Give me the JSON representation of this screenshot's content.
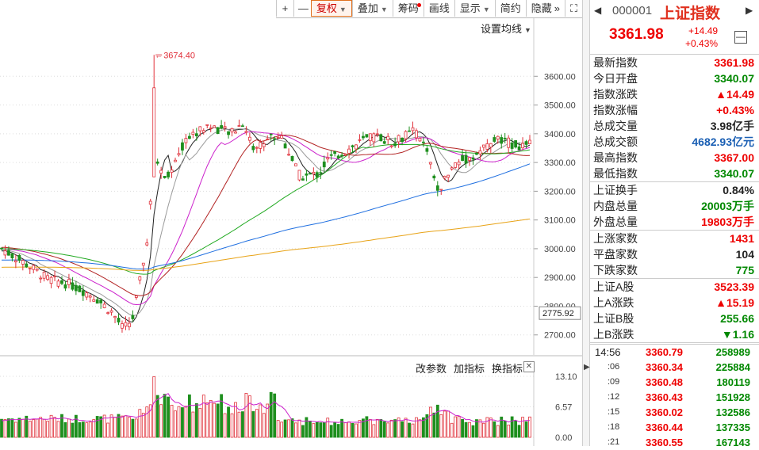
{
  "toolbar": {
    "buttons": [
      {
        "label": "+",
        "caret": false,
        "sq": true
      },
      {
        "label": "—",
        "caret": false,
        "sq": true
      },
      {
        "label": "复权",
        "caret": true,
        "active": true
      },
      {
        "label": "叠加",
        "caret": true
      },
      {
        "label": "筹码",
        "caret": false,
        "dot": true
      },
      {
        "label": "画线",
        "caret": false
      },
      {
        "label": "显示",
        "caret": true
      },
      {
        "label": "简约",
        "caret": false
      },
      {
        "label": "隐藏",
        "caret": false,
        "suffix": "»"
      },
      {
        "label": "⛶",
        "caret": false,
        "sq": true
      }
    ]
  },
  "ma_setting": "设置均线",
  "price_axis": {
    "ticks": [
      "3600.00",
      "3500.00",
      "3400.00",
      "3300.00",
      "3200.00",
      "3100.00",
      "3000.00",
      "2900.00",
      "2800.00",
      "2700.00"
    ],
    "tick_values": [
      3600,
      3500,
      3400,
      3300,
      3200,
      3100,
      3000,
      2900,
      2800,
      2700
    ],
    "current_label": "2775.92",
    "current_value": 2775.92
  },
  "annotation": {
    "high_label": "3674.40",
    "high_value": 3674.4
  },
  "volume_toolbar": {
    "items": [
      "改参数",
      "加指标",
      "换指标"
    ],
    "close": "✕"
  },
  "volume_axis": {
    "ticks": [
      "13.10",
      "6.57",
      "0.00"
    ]
  },
  "chart_data": {
    "type": "candlestick",
    "colors": {
      "up": "#e0303a",
      "down": "#1e8f1e",
      "ma5": "#222222",
      "ma10": "#9a9a9a",
      "ma20": "#cc22cc",
      "ma30": "#b22222",
      "ma60": "#22aa22",
      "ma120": "#1f6fe0",
      "ma250": "#e8a317"
    },
    "ylim": [
      2680,
      3700
    ],
    "vol_ylim": [
      0,
      13.1
    ]
  },
  "quote": {
    "code": "000001",
    "name": "上证指数",
    "price": "3361.98",
    "change": "+14.49",
    "change_pct": "+0.43%",
    "prev_icon": "◀",
    "next_icon": "▶",
    "collapse": "—",
    "groups": [
      [
        {
          "label": "最新指数",
          "value": "3361.98",
          "color": "red"
        },
        {
          "label": "今日开盘",
          "value": "3340.07",
          "color": "green"
        },
        {
          "label": "指数涨跌",
          "value": "▲14.49",
          "color": "red"
        },
        {
          "label": "指数涨幅",
          "value": "+0.43%",
          "color": "red"
        },
        {
          "label": "总成交量",
          "value": "3.98亿手",
          "color": "blk"
        },
        {
          "label": "总成交额",
          "value": "4682.93亿元",
          "color": "blue"
        },
        {
          "label": "最高指数",
          "value": "3367.00",
          "color": "red"
        },
        {
          "label": "最低指数",
          "value": "3340.07",
          "color": "green"
        }
      ],
      [
        {
          "label": "上证换手",
          "value": "0.84%",
          "color": "blk"
        },
        {
          "label": "内盘总量",
          "value": "20003万手",
          "color": "green"
        },
        {
          "label": "外盘总量",
          "value": "19803万手",
          "color": "red"
        }
      ],
      [
        {
          "label": "上涨家数",
          "value": "1431",
          "color": "red"
        },
        {
          "label": "平盘家数",
          "value": "104",
          "color": "blk"
        },
        {
          "label": "下跌家数",
          "value": "775",
          "color": "green"
        }
      ],
      [
        {
          "label": "上证A股",
          "value": "3523.39",
          "color": "red"
        },
        {
          "label": "上A涨跌",
          "value": "▲15.19",
          "color": "red"
        },
        {
          "label": "上证B股",
          "value": "255.66",
          "color": "green"
        },
        {
          "label": "上B涨跌",
          "value": "▼1.16",
          "color": "green"
        }
      ]
    ],
    "trades": [
      {
        "time": "14:56",
        "price": "3360.79",
        "volume": "258989"
      },
      {
        "time": ":06",
        "price": "3360.34",
        "volume": "225884"
      },
      {
        "time": ":09",
        "price": "3360.48",
        "volume": "180119"
      },
      {
        "time": ":12",
        "price": "3360.43",
        "volume": "151928"
      },
      {
        "time": ":15",
        "price": "3360.02",
        "volume": "132586"
      },
      {
        "time": ":18",
        "price": "3360.44",
        "volume": "137335"
      },
      {
        "time": ":21",
        "price": "3360.55",
        "volume": "167143"
      }
    ]
  }
}
